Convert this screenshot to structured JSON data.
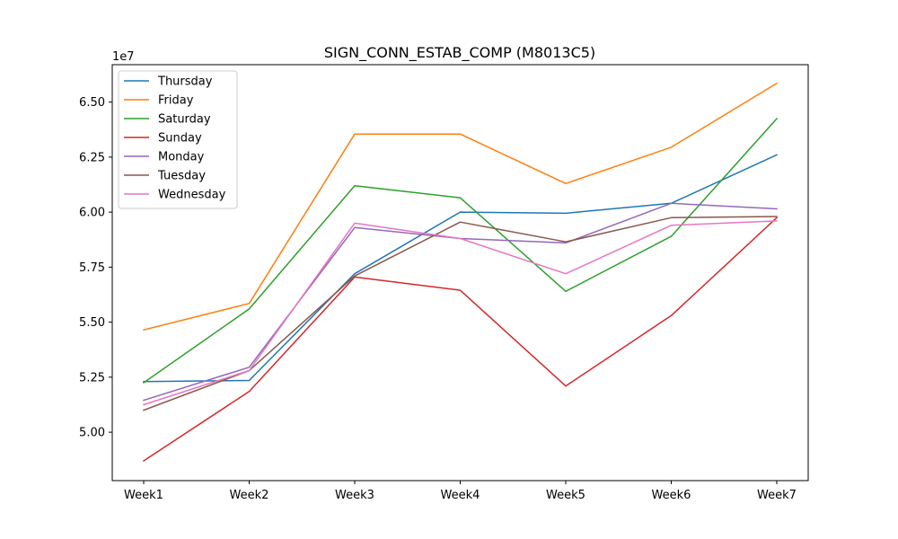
{
  "chart_data": {
    "type": "line",
    "title": "SIGN_CONN_ESTAB_COMP (M8013C5)",
    "xlabel": "",
    "ylabel": "",
    "y_scale_label": "1e7",
    "categories": [
      "Week1",
      "Week2",
      "Week3",
      "Week4",
      "Week5",
      "Week6",
      "Week7"
    ],
    "ylim": [
      4.78,
      6.67
    ],
    "yticks": [
      5.0,
      5.25,
      5.5,
      5.75,
      6.0,
      6.25,
      6.5
    ],
    "ytick_labels": [
      "5.00",
      "5.25",
      "5.50",
      "5.75",
      "6.00",
      "6.25",
      "6.50"
    ],
    "grid": false,
    "legend_position": "top-left",
    "series": [
      {
        "name": "Thursday",
        "color": "#1f77b4",
        "values": [
          5.23,
          5.235,
          5.72,
          6.0,
          5.995,
          6.04,
          6.26
        ]
      },
      {
        "name": "Friday",
        "color": "#ff7f0e",
        "values": [
          5.465,
          5.585,
          6.355,
          6.355,
          6.13,
          6.295,
          6.585
        ]
      },
      {
        "name": "Saturday",
        "color": "#2ca02c",
        "values": [
          5.225,
          5.56,
          6.12,
          6.065,
          5.64,
          5.89,
          6.425
        ]
      },
      {
        "name": "Sunday",
        "color": "#d62728",
        "values": [
          4.87,
          5.185,
          5.705,
          5.645,
          5.21,
          5.53,
          5.975
        ]
      },
      {
        "name": "Monday",
        "color": "#9467bd",
        "values": [
          5.145,
          5.295,
          5.93,
          5.88,
          5.86,
          6.04,
          6.015
        ]
      },
      {
        "name": "Tuesday",
        "color": "#8c564b",
        "values": [
          5.1,
          5.28,
          5.71,
          5.955,
          5.865,
          5.975,
          5.98
        ]
      },
      {
        "name": "Wednesday",
        "color": "#e377c2",
        "values": [
          5.125,
          5.28,
          5.95,
          5.88,
          5.72,
          5.94,
          5.96
        ]
      }
    ]
  }
}
